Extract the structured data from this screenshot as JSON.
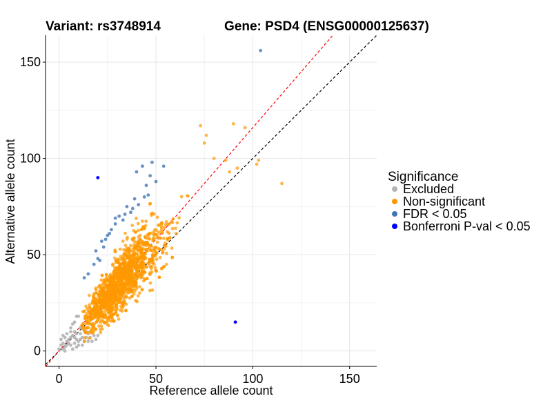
{
  "chart_data": {
    "type": "scatter",
    "title_left": "Variant: rs3748914",
    "title_right": "Gene: PSD4 (ENSG00000125637)",
    "xlabel": "Reference allele count",
    "ylabel": "Alternative allele count",
    "xlim": [
      -7,
      164
    ],
    "ylim": [
      -8,
      164
    ],
    "xticks": [
      0,
      50,
      100,
      150
    ],
    "yticks": [
      0,
      50,
      100,
      150
    ],
    "grid": true,
    "legend": {
      "title": "Significance",
      "position": "right",
      "entries": [
        {
          "key": "excluded",
          "label": "Excluded",
          "color": "#b3b3b3"
        },
        {
          "key": "nonsig",
          "label": "Non-significant",
          "color": "#ff9900"
        },
        {
          "key": "fdr",
          "label": "FDR < 0.05",
          "color": "#3f76b5"
        },
        {
          "key": "bonf",
          "label": "Bonferroni P-val < 0.05",
          "color": "#0000ff"
        }
      ]
    },
    "reference_lines": [
      {
        "name": "identity",
        "slope": 1,
        "intercept": 0,
        "color": "#000000",
        "dash": true
      },
      {
        "name": "fitted",
        "slope": 1.16,
        "intercept": 0,
        "color": "#ff0000",
        "dash": true
      }
    ],
    "series": [
      {
        "name": "Excluded",
        "color": "#b3b3b3",
        "points": [
          [
            0,
            1
          ],
          [
            1,
            3
          ],
          [
            2,
            4
          ],
          [
            3,
            2
          ],
          [
            4,
            5
          ],
          [
            5,
            6
          ],
          [
            2,
            8
          ],
          [
            6,
            3
          ],
          [
            7,
            8
          ],
          [
            8,
            10
          ],
          [
            9,
            6
          ],
          [
            10,
            5
          ],
          [
            11,
            9
          ],
          [
            12,
            7
          ],
          [
            14,
            7
          ],
          [
            15,
            9
          ],
          [
            12,
            12
          ],
          [
            6,
            12
          ],
          [
            7,
            14
          ],
          [
            8,
            15
          ],
          [
            9,
            18
          ],
          [
            10,
            18
          ],
          [
            6,
            10
          ],
          [
            4,
            9
          ],
          [
            3,
            7
          ],
          [
            5,
            4
          ],
          [
            8,
            4
          ],
          [
            10,
            3
          ],
          [
            11,
            6
          ],
          [
            13,
            5
          ],
          [
            14,
            10
          ],
          [
            16,
            7
          ],
          [
            18,
            8
          ],
          [
            20,
            8
          ],
          [
            19,
            6
          ],
          [
            17,
            5
          ],
          [
            9,
            2
          ],
          [
            1,
            6
          ],
          [
            2,
            1
          ],
          [
            4,
            3
          ],
          [
            6,
            7
          ],
          [
            8,
            7
          ],
          [
            12,
            3
          ],
          [
            15,
            5
          ],
          [
            3,
            0
          ],
          [
            7,
            1
          ],
          [
            9,
            9
          ],
          [
            13,
            11
          ],
          [
            11,
            12
          ],
          [
            16,
            10
          ]
        ]
      },
      {
        "name": "Non-significant",
        "color": "#ff9900",
        "generated": true,
        "count": 1500,
        "x_range": [
          11,
          80
        ],
        "center_ratio": 1.13,
        "highlights": [
          [
            90,
            118
          ],
          [
            96,
            116
          ],
          [
            103,
            99
          ],
          [
            102,
            97
          ],
          [
            115,
            87
          ],
          [
            86,
            99
          ],
          [
            92,
            95
          ],
          [
            80,
            100
          ],
          [
            76,
            112
          ],
          [
            73,
            117
          ],
          [
            75,
            108
          ],
          [
            88,
            93
          ]
        ]
      },
      {
        "name": "FDR < 0.05",
        "color": "#3f76b5",
        "points": [
          [
            104,
            156
          ],
          [
            48,
            98
          ],
          [
            43,
            96
          ],
          [
            40,
            93
          ],
          [
            54,
            96
          ],
          [
            47,
            91
          ],
          [
            45,
            86
          ],
          [
            46,
            81
          ],
          [
            39,
            79
          ],
          [
            41,
            76
          ],
          [
            38,
            74
          ],
          [
            34,
            71
          ],
          [
            35,
            75
          ],
          [
            31,
            70
          ],
          [
            33,
            68
          ],
          [
            29,
            66
          ],
          [
            27,
            63
          ],
          [
            25,
            60
          ],
          [
            24,
            58
          ],
          [
            22,
            57
          ],
          [
            23,
            54
          ],
          [
            19,
            52
          ],
          [
            21,
            47
          ],
          [
            20,
            48
          ],
          [
            18,
            45
          ],
          [
            15,
            40
          ],
          [
            13,
            38
          ],
          [
            29,
            69
          ],
          [
            37,
            72
          ],
          [
            44,
            80
          ],
          [
            50,
            88
          ],
          [
            26,
            61
          ]
        ]
      },
      {
        "name": "Bonferroni P-val < 0.05",
        "color": "#0000ff",
        "points": [
          [
            20,
            90
          ],
          [
            91,
            15
          ]
        ]
      }
    ]
  }
}
